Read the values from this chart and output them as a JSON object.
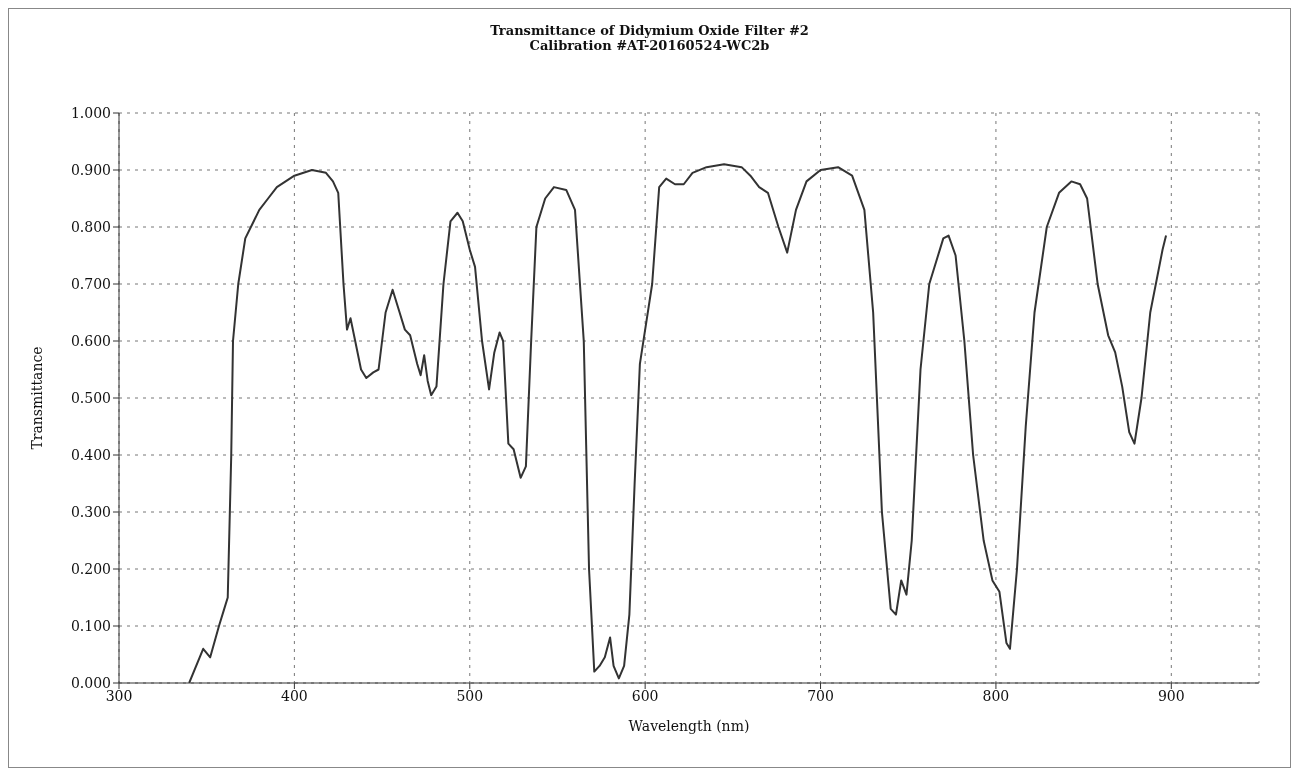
{
  "chart_data": {
    "type": "line",
    "title": "Transmittance of Didymium Oxide Filter #2",
    "subtitle": "Calibration #AT-20160524-WC2b",
    "xlabel": "Wavelength (nm)",
    "ylabel": "Transmittance",
    "xlim": [
      300,
      950
    ],
    "xticks": [
      300,
      400,
      500,
      600,
      700,
      800,
      900
    ],
    "ylim": [
      0,
      1
    ],
    "yticks": [
      {
        "value": 0,
        "label": "0.000"
      },
      {
        "value": 0.1,
        "label": "0.100"
      },
      {
        "value": 0.2,
        "label": "0.200"
      },
      {
        "value": 0.3,
        "label": "0.300"
      },
      {
        "value": 0.4,
        "label": "0.400"
      },
      {
        "value": 0.5,
        "label": "0.500"
      },
      {
        "value": 0.6,
        "label": "0.600"
      },
      {
        "value": 0.7,
        "label": "0.700"
      },
      {
        "value": 0.8,
        "label": "0.800"
      },
      {
        "value": 0.9,
        "label": "0.900"
      },
      {
        "value": 1,
        "label": "1.000"
      }
    ],
    "grid": true,
    "marker": "none",
    "line_style": "solid",
    "legend": false,
    "x": [
      340,
      348,
      352,
      357,
      360,
      362,
      364,
      365,
      368,
      372,
      380,
      385,
      390,
      400,
      410,
      418,
      422,
      425,
      428,
      430,
      432,
      434,
      438,
      441,
      445,
      448,
      452,
      456,
      460,
      463,
      466,
      470,
      472,
      474,
      476,
      478,
      481,
      485,
      489,
      493,
      496,
      500,
      503,
      507,
      511,
      514,
      517,
      519,
      522,
      525,
      529,
      532,
      535,
      538,
      543,
      548,
      555,
      560,
      565,
      568,
      571,
      574,
      577,
      580,
      582,
      585,
      588,
      591,
      594,
      597,
      600,
      604,
      608,
      612,
      617,
      622,
      627,
      635,
      645,
      655,
      660,
      665,
      670,
      676,
      681,
      686,
      692,
      700,
      710,
      718,
      725,
      730,
      735,
      740,
      743,
      746,
      749,
      752,
      757,
      762,
      770,
      773,
      777,
      782,
      787,
      793,
      798,
      802,
      806,
      808,
      812,
      817,
      822,
      829,
      836,
      843,
      848,
      852,
      858,
      864,
      868,
      872,
      876,
      879,
      883,
      888,
      895,
      897
    ],
    "series": [
      {
        "color": "#333333",
        "values": [
          0,
          0.06,
          0.045,
          0.1,
          0.13,
          0.15,
          0.4,
          0.6,
          0.7,
          0.78,
          0.83,
          0.85,
          0.87,
          0.89,
          0.9,
          0.895,
          0.88,
          0.86,
          0.7,
          0.62,
          0.64,
          0.61,
          0.55,
          0.535,
          0.545,
          0.55,
          0.65,
          0.69,
          0.65,
          0.62,
          0.61,
          0.56,
          0.54,
          0.575,
          0.53,
          0.505,
          0.52,
          0.7,
          0.81,
          0.825,
          0.81,
          0.76,
          0.73,
          0.6,
          0.515,
          0.58,
          0.615,
          0.6,
          0.42,
          0.41,
          0.36,
          0.38,
          0.6,
          0.8,
          0.85,
          0.87,
          0.865,
          0.83,
          0.6,
          0.2,
          0.02,
          0.03,
          0.045,
          0.08,
          0.03,
          0.008,
          0.03,
          0.12,
          0.35,
          0.56,
          0.62,
          0.7,
          0.87,
          0.885,
          0.875,
          0.875,
          0.895,
          0.905,
          0.91,
          0.905,
          0.89,
          0.87,
          0.86,
          0.8,
          0.755,
          0.83,
          0.88,
          0.9,
          0.905,
          0.89,
          0.83,
          0.65,
          0.3,
          0.13,
          0.12,
          0.18,
          0.155,
          0.25,
          0.55,
          0.7,
          0.78,
          0.785,
          0.75,
          0.6,
          0.4,
          0.25,
          0.18,
          0.16,
          0.07,
          0.06,
          0.2,
          0.45,
          0.65,
          0.8,
          0.86,
          0.88,
          0.875,
          0.85,
          0.7,
          0.61,
          0.58,
          0.52,
          0.44,
          0.42,
          0.5,
          0.65,
          0.76,
          0.785
        ]
      }
    ]
  }
}
